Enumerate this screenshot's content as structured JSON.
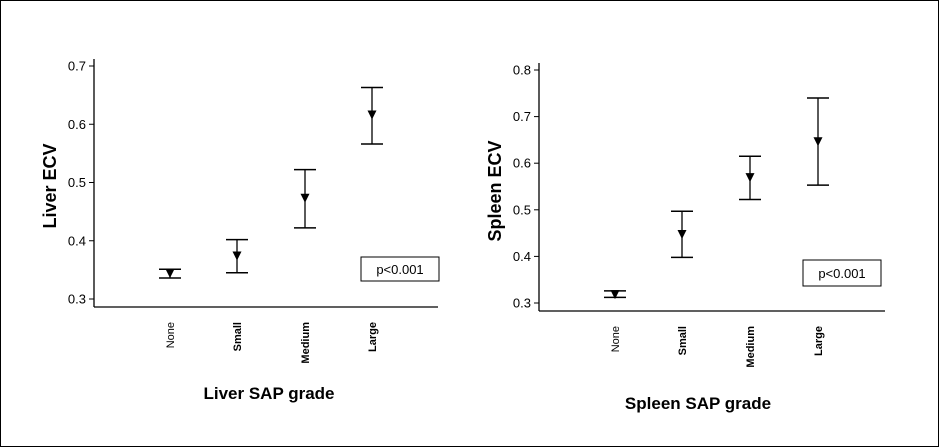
{
  "chart_data": [
    {
      "type": "errorbar",
      "xlabel": "Liver SAP grade",
      "ylabel": "Liver ECV",
      "categories": [
        "None",
        "Small",
        "Medium",
        "Large"
      ],
      "yticks": [
        "0.3",
        "0.4",
        "0.5",
        "0.6",
        "0.7"
      ],
      "ylim": [
        0.3,
        0.7
      ],
      "series": [
        {
          "mean": [
            0.343,
            0.373,
            0.472,
            0.615
          ],
          "lower": [
            0.336,
            0.345,
            0.422,
            0.566
          ],
          "upper": [
            0.351,
            0.402,
            0.522,
            0.663
          ]
        }
      ],
      "annotation": "p<0.001",
      "grid": false
    },
    {
      "type": "errorbar",
      "xlabel": "Spleen SAP grade",
      "ylabel": "Spleen ECV",
      "categories": [
        "None",
        "Small",
        "Medium",
        "Large"
      ],
      "yticks": [
        "0.3",
        "0.4",
        "0.5",
        "0.6",
        "0.7",
        "0.8"
      ],
      "ylim": [
        0.3,
        0.8
      ],
      "series": [
        {
          "mean": [
            0.317,
            0.446,
            0.568,
            0.645
          ],
          "lower": [
            0.312,
            0.398,
            0.522,
            0.553
          ],
          "upper": [
            0.326,
            0.497,
            0.615,
            0.74
          ]
        }
      ],
      "annotation": "p<0.001",
      "grid": false
    }
  ]
}
